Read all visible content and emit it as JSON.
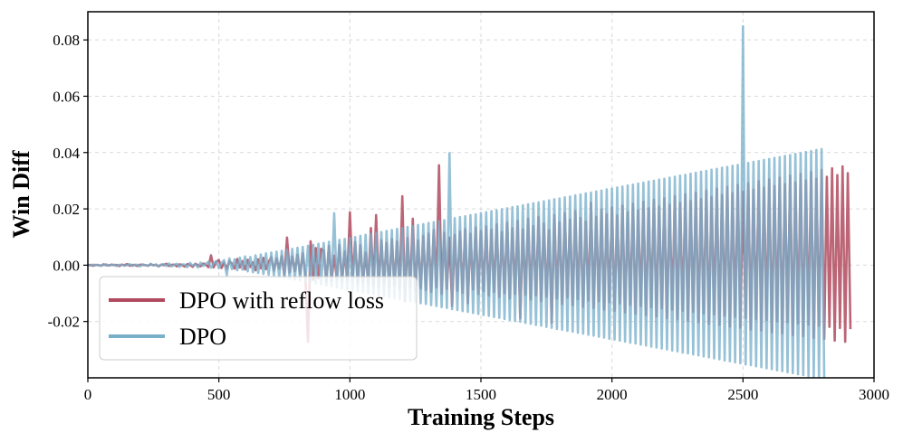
{
  "chart_data": {
    "type": "line",
    "title": "",
    "xlabel": "Training Steps",
    "ylabel": "Win Diff",
    "xlim": [
      0,
      3000
    ],
    "ylim": [
      -0.04,
      0.09
    ],
    "x_ticks": [
      0,
      500,
      1000,
      1500,
      2000,
      2500,
      3000
    ],
    "x_tick_labels": [
      "0",
      "500",
      "1000",
      "1500",
      "2000",
      "2500",
      "3000"
    ],
    "y_ticks": [
      -0.02,
      0.0,
      0.02,
      0.04,
      0.06,
      0.08
    ],
    "y_tick_labels": [
      "-0.02",
      "0.00",
      "0.02",
      "0.04",
      "0.06",
      "0.08"
    ],
    "grid": true,
    "legend_position": "lower-left",
    "series": [
      {
        "name": "DPO with reflow loss",
        "color": "#b04a5e",
        "step": 10,
        "x_start": 0,
        "x_end": 3000,
        "values": [
          0.0,
          0.0001,
          -0.0002,
          0.0001,
          0.0,
          -0.0002,
          0.0003,
          0.0,
          -0.0001,
          0.0002,
          0.0,
          0.0001,
          -0.0003,
          0.0002,
          0.0,
          0.0004,
          -0.0002,
          0.0001,
          0.0,
          -0.0003,
          0.0002,
          0.0001,
          0.0,
          -0.0002,
          0.0003,
          0.0,
          0.0001,
          -0.0004,
          0.0002,
          0.0,
          0.0005,
          -0.0003,
          0.0001,
          0.0002,
          -0.0004,
          0.0003,
          0.0,
          -0.0005,
          0.0004,
          0.0001,
          -0.0006,
          0.0005,
          0.0,
          -0.0004,
          0.0006,
          0.0002,
          -0.0007,
          0.0035,
          -0.0008,
          0.0012,
          0.0018,
          -0.001,
          0.0009,
          -0.0013,
          0.0015,
          0.0005,
          -0.0012,
          0.0022,
          -0.0008,
          0.0014,
          -0.0015,
          0.0019,
          -0.0006,
          0.001,
          -0.0018,
          0.0021,
          -0.0011,
          0.0026,
          -0.0014,
          0.0012,
          0.0028,
          -0.0019,
          0.0024,
          -0.0012,
          0.0032,
          -0.0038,
          0.0098,
          -0.0025,
          0.0031,
          -0.0021,
          0.0037,
          -0.0031,
          0.0042,
          -0.0036,
          -0.0272,
          0.0085,
          -0.0052,
          0.0061,
          -0.0046,
          0.0058,
          0.0052,
          -0.0061,
          0.0068,
          -0.0055,
          0.0034,
          -0.0048,
          0.0072,
          -0.0058,
          0.0049,
          -0.0052,
          0.0188,
          -0.0046,
          0.0082,
          -0.0065,
          0.0071,
          -0.0059,
          0.0045,
          -0.0068,
          0.0132,
          -0.0072,
          0.0178,
          -0.0075,
          0.0088,
          -0.0063,
          0.0079,
          -0.0081,
          0.0092,
          -0.0071,
          0.0084,
          -0.0086,
          0.0245,
          -0.0128,
          0.0097,
          -0.0078,
          0.0165,
          -0.0091,
          0.0088,
          -0.0082,
          0.0104,
          -0.0088,
          0.0112,
          -0.0095,
          0.0125,
          -0.0079,
          0.0355,
          -0.0102,
          0.0115,
          -0.0084,
          0.0098,
          -0.0145,
          0.0108,
          -0.0091,
          0.0119,
          -0.0098,
          0.0128,
          -0.0135,
          0.0112,
          -0.0087,
          0.0134,
          -0.0102,
          0.0121,
          -0.0092,
          0.0138,
          -0.0108,
          0.0126,
          -0.0095,
          0.0145,
          -0.0113,
          0.0118,
          -0.0099,
          0.0151,
          -0.0118,
          0.0131,
          -0.0102,
          0.0158,
          -0.0189,
          0.0127,
          -0.0105,
          0.0165,
          -0.0122,
          0.0139,
          -0.0107,
          0.0171,
          -0.0128,
          0.0148,
          -0.0112,
          0.0125,
          -0.0205,
          0.0178,
          -0.0118,
          0.0152,
          -0.0138,
          0.0185,
          -0.0115,
          0.0162,
          -0.0142,
          0.0192,
          -0.0121,
          0.0168,
          -0.0148,
          0.0155,
          -0.0126,
          0.0222,
          -0.0152,
          0.0172,
          -0.0128,
          0.0198,
          -0.0158,
          0.0181,
          -0.0132,
          0.0205,
          -0.0162,
          0.0177,
          -0.0136,
          0.0212,
          -0.0168,
          0.0188,
          -0.0141,
          0.0218,
          -0.0172,
          0.0195,
          -0.0145,
          0.0225,
          -0.0178,
          0.0202,
          -0.0149,
          0.0232,
          -0.0182,
          0.0208,
          -0.0153,
          0.0238,
          -0.0188,
          0.0215,
          -0.0158,
          0.0245,
          -0.0192,
          0.0221,
          -0.0162,
          0.0252,
          -0.0198,
          0.0228,
          -0.0166,
          0.0258,
          -0.0202,
          0.0235,
          -0.0171,
          0.0265,
          -0.0208,
          0.0242,
          -0.0175,
          0.0272,
          -0.0212,
          0.0249,
          -0.0179,
          0.0278,
          -0.0218,
          0.0255,
          -0.0183,
          0.0285,
          -0.0222,
          0.0262,
          -0.0187,
          0.0291,
          -0.0228,
          0.0268,
          -0.0191,
          0.0298,
          -0.0232,
          0.0275,
          -0.0195,
          0.0305,
          -0.0238,
          0.0281,
          -0.0199,
          0.0311,
          -0.0242,
          0.0288,
          -0.0203,
          0.0318,
          -0.0248,
          0.0294,
          -0.0207,
          0.0324,
          -0.0252,
          0.0301,
          -0.0211,
          0.0331,
          -0.0258,
          0.0307,
          -0.0215,
          0.0338,
          -0.0262,
          0.0314,
          -0.0219,
          0.0344,
          -0.0268,
          0.032,
          -0.0223,
          0.0351,
          -0.0272,
          0.0327,
          -0.0227
        ]
      },
      {
        "name": "DPO",
        "color": "#78b0ca",
        "step": 10,
        "x_start": 0,
        "x_end": 3000,
        "values": [
          0.0,
          -0.0001,
          0.0002,
          0.0,
          0.0001,
          -0.0002,
          0.0001,
          0.0003,
          -0.0001,
          0.0,
          0.0002,
          -0.0003,
          0.0001,
          0.0002,
          -0.0002,
          0.0,
          0.0004,
          -0.0003,
          0.0002,
          0.0001,
          -0.0004,
          0.0003,
          0.0,
          -0.0002,
          0.0005,
          -0.0001,
          0.0003,
          -0.0005,
          0.0002,
          0.0004,
          -0.0003,
          0.0006,
          -0.0004,
          0.0001,
          0.0005,
          -0.0006,
          0.0003,
          0.0002,
          -0.0007,
          0.0008,
          -0.0002,
          0.0004,
          -0.0008,
          0.0009,
          -0.0003,
          0.0005,
          0.0012,
          -0.0009,
          0.0006,
          0.0015,
          -0.0011,
          0.0008,
          0.0018,
          -0.0035,
          0.0024,
          -0.0014,
          0.0021,
          -0.0018,
          0.0027,
          -0.0016,
          0.0031,
          -0.0022,
          0.0029,
          -0.0025,
          0.0035,
          -0.0028,
          0.0038,
          -0.0031,
          0.0042,
          -0.0034,
          0.0045,
          -0.0037,
          0.0048,
          -0.0041,
          0.0051,
          -0.0044,
          0.0055,
          -0.0048,
          0.0058,
          -0.0051,
          0.0062,
          -0.0054,
          0.0065,
          -0.0058,
          0.0069,
          -0.0061,
          0.0072,
          -0.0065,
          0.0076,
          -0.0068,
          0.0079,
          -0.0072,
          0.0083,
          -0.0075,
          0.0185,
          -0.0079,
          0.009,
          -0.0082,
          0.0093,
          -0.0086,
          0.0097,
          -0.0089,
          0.01,
          -0.0093,
          0.0104,
          -0.0096,
          0.0108,
          -0.01,
          0.0111,
          -0.0103,
          0.0115,
          -0.0107,
          0.0118,
          -0.011,
          0.0122,
          -0.0114,
          0.0125,
          -0.0117,
          0.0129,
          -0.0121,
          0.0132,
          -0.0124,
          0.0136,
          -0.0128,
          0.0139,
          -0.0131,
          0.0143,
          -0.0135,
          0.0146,
          -0.0138,
          0.015,
          -0.0142,
          0.0153,
          -0.0145,
          0.0157,
          -0.0149,
          0.016,
          -0.0152,
          0.0398,
          -0.0156,
          0.0167,
          -0.0159,
          0.0171,
          -0.0163,
          0.0174,
          -0.0166,
          0.0178,
          -0.017,
          0.0181,
          -0.0173,
          0.0185,
          -0.0177,
          0.0188,
          -0.018,
          0.0192,
          -0.0184,
          0.0195,
          -0.0187,
          0.0199,
          -0.0191,
          0.0202,
          -0.0194,
          0.0206,
          -0.0198,
          0.0209,
          -0.0201,
          0.0213,
          -0.0205,
          0.0216,
          -0.0208,
          0.022,
          -0.0212,
          0.0223,
          -0.0215,
          0.0227,
          -0.0219,
          0.023,
          -0.0222,
          0.0234,
          -0.0226,
          0.0237,
          -0.0229,
          0.0241,
          -0.0233,
          0.0244,
          -0.0236,
          0.0248,
          -0.024,
          0.0251,
          -0.0243,
          0.0255,
          -0.0247,
          0.0258,
          -0.025,
          0.0262,
          -0.0254,
          0.0265,
          -0.0257,
          0.0269,
          -0.0261,
          0.0272,
          -0.0264,
          0.0276,
          -0.0268,
          0.0279,
          -0.0271,
          0.0283,
          -0.0275,
          0.0286,
          -0.0278,
          0.029,
          -0.0282,
          0.0293,
          -0.0285,
          0.0297,
          -0.0289,
          0.03,
          -0.0292,
          0.0304,
          -0.0296,
          0.0307,
          -0.0299,
          0.0311,
          -0.0303,
          0.0314,
          -0.0306,
          0.0318,
          -0.031,
          0.0321,
          -0.0313,
          0.0325,
          -0.0317,
          0.0328,
          -0.032,
          0.0332,
          -0.0324,
          0.0335,
          -0.0327,
          0.0339,
          -0.0331,
          0.0342,
          -0.0334,
          0.0346,
          -0.0338,
          0.0349,
          -0.0341,
          0.0353,
          -0.0345,
          0.0356,
          -0.0348,
          0.0848,
          -0.0352,
          0.0363,
          -0.0355,
          0.0367,
          -0.0359,
          0.037,
          -0.0362,
          0.0374,
          -0.0366,
          0.0377,
          -0.0369,
          0.0381,
          -0.0373,
          0.0384,
          -0.0376,
          0.0388,
          -0.038,
          0.0391,
          -0.0383,
          0.0395,
          -0.0387,
          0.0398,
          -0.039,
          0.0402,
          -0.0394,
          0.0405,
          -0.0397,
          0.0409,
          -0.0401,
          0.0412,
          -0.0404
        ]
      }
    ]
  }
}
